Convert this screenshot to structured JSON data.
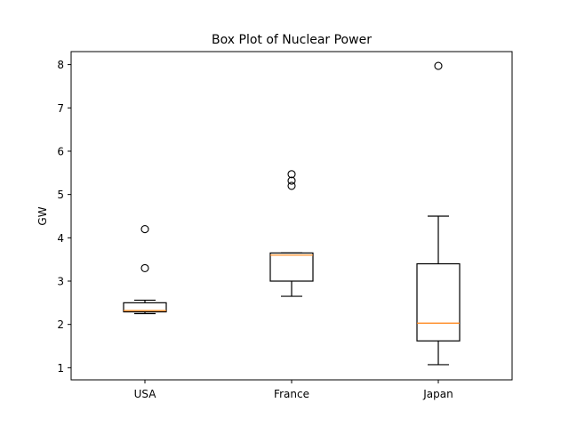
{
  "chart_data": {
    "type": "boxplot",
    "title": "Box Plot of Nuclear Power",
    "xlabel": "",
    "ylabel": "GW",
    "ylim": [
      0.72,
      8.3
    ],
    "yticks": [
      1,
      2,
      3,
      4,
      5,
      6,
      7,
      8
    ],
    "grid": false,
    "categories": [
      "USA",
      "France",
      "Japan"
    ],
    "boxes": [
      {
        "category": "USA",
        "whisker_low": 2.25,
        "q1": 2.29,
        "median": 2.32,
        "q3": 2.5,
        "whisker_high": 2.56,
        "outliers": [
          3.3,
          4.2
        ]
      },
      {
        "category": "France",
        "whisker_low": 2.65,
        "q1": 3.0,
        "median": 3.6,
        "q3": 3.65,
        "whisker_high": 3.65,
        "outliers": [
          5.2,
          5.32,
          5.47
        ]
      },
      {
        "category": "Japan",
        "whisker_low": 1.07,
        "q1": 1.62,
        "median": 2.03,
        "q3": 3.4,
        "whisker_high": 4.5,
        "outliers": [
          7.97
        ]
      }
    ],
    "colors": {
      "median": "#ff7f0e",
      "box": "#000000"
    }
  }
}
